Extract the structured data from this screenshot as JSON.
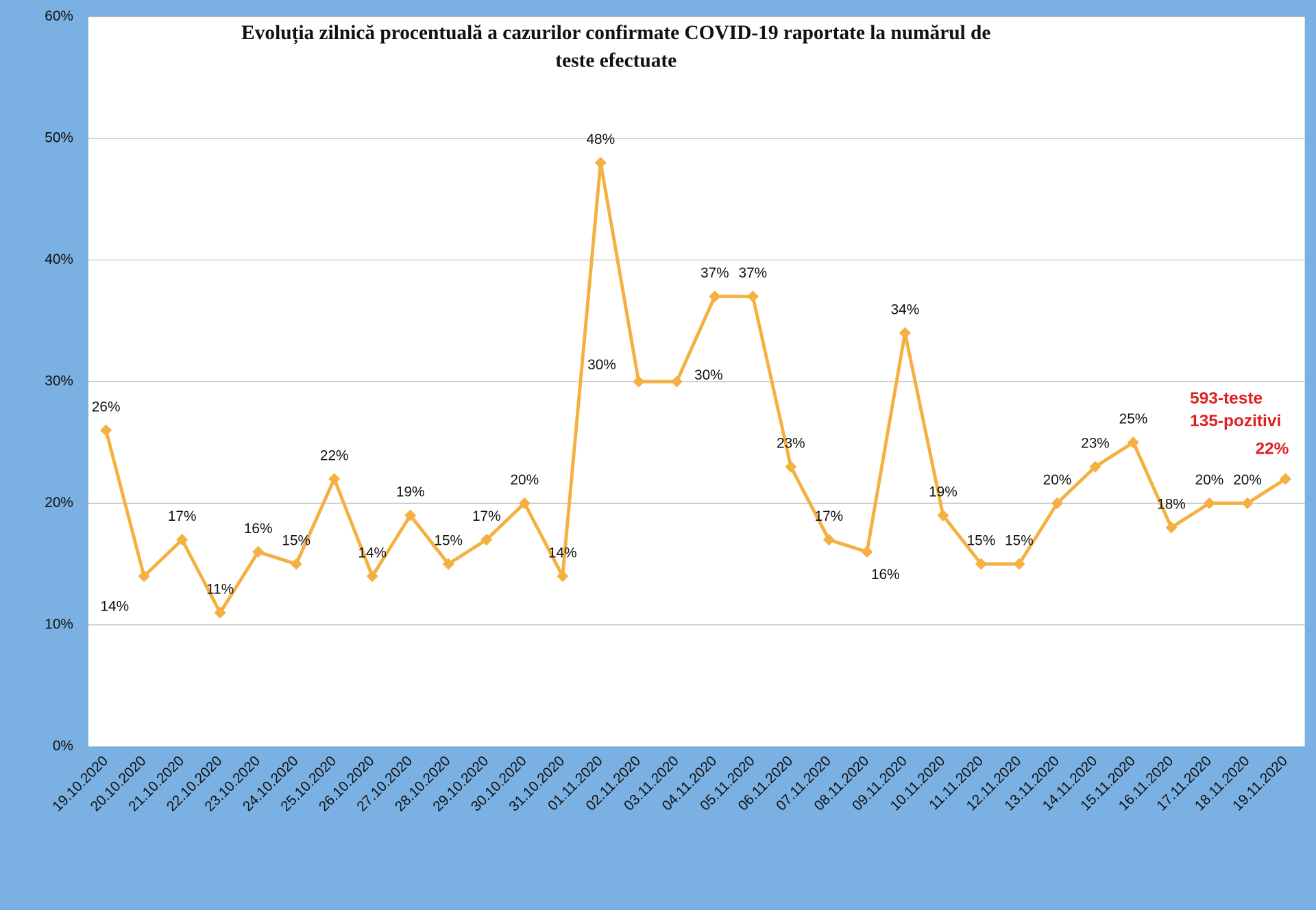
{
  "chart_data": {
    "type": "line",
    "title": [
      "Evoluția zilnică procentuală a cazurilor confirmate COVID-19 raportate la numărul de",
      "teste efectuate"
    ],
    "categories": [
      "19.10.2020",
      "20.10.2020",
      "21.10.2020",
      "22.10.2020",
      "23.10.2020",
      "24.10.2020",
      "25.10.2020",
      "26.10.2020",
      "27.10.2020",
      "28.10.2020",
      "29.10.2020",
      "30.10.2020",
      "31.10.2020",
      "01.11.2020",
      "02.11.2020",
      "03.11.2020",
      "04.11.2020",
      "05.11.2020",
      "06.11.2020",
      "07.11.2020",
      "08.11.2020",
      "09.11.2020",
      "10.11.2020",
      "11.11.2020",
      "12.11.2020",
      "13.11.2020",
      "14.11.2020",
      "15.11.2020",
      "16.11.2020",
      "17.11.2020",
      "18.11.2020",
      "19.11.2020"
    ],
    "series": [
      {
        "color": "#f5b042",
        "values": [
          26,
          14,
          17,
          11,
          16,
          15,
          22,
          14,
          19,
          15,
          17,
          20,
          14,
          48,
          30,
          30,
          37,
          37,
          23,
          17,
          16,
          34,
          19,
          15,
          15,
          20,
          23,
          25,
          18,
          20,
          20,
          22
        ],
        "value_labels": [
          "26%",
          "14%",
          "17%",
          "11%",
          "16%",
          "15%",
          "22%",
          "14%",
          "19%",
          "15%",
          "17%",
          "20%",
          "14%",
          "48%",
          "30%",
          "30%",
          "37%",
          "37%",
          "23%",
          "17%",
          "16%",
          "34%",
          "19%",
          "15%",
          "15%",
          "20%",
          "23%",
          "25%",
          "18%",
          "20%",
          "20%",
          "22%"
        ]
      }
    ],
    "annotations": [
      "593-teste",
      "135-pozitivi"
    ],
    "ylim": [
      0,
      60
    ],
    "yticks": [
      {
        "value": 0,
        "label": "0%"
      },
      {
        "value": 10,
        "label": "10%"
      },
      {
        "value": 20,
        "label": "20%"
      },
      {
        "value": 30,
        "label": "30%"
      },
      {
        "value": 40,
        "label": "40%"
      },
      {
        "value": 50,
        "label": "50%"
      },
      {
        "value": 60,
        "label": "60%"
      }
    ],
    "grid": true
  }
}
